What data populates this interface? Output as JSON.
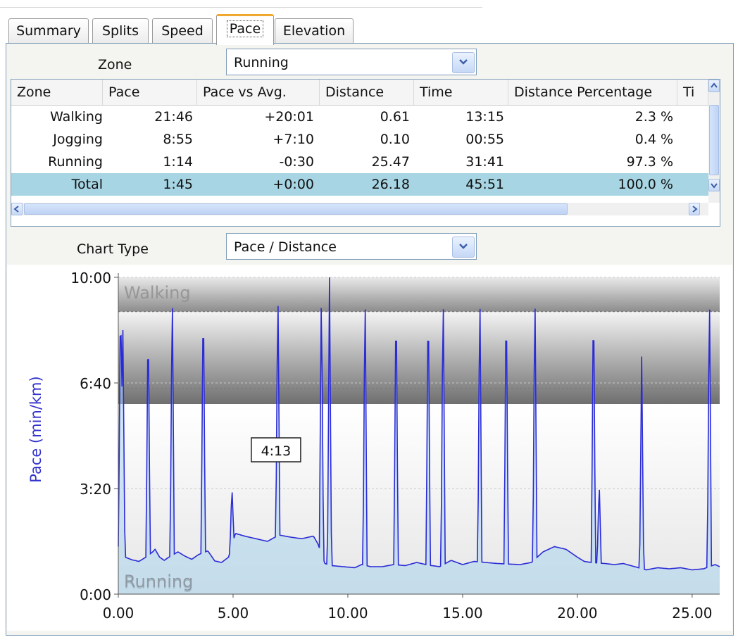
{
  "tabs": [
    {
      "label": "Summary",
      "active": false
    },
    {
      "label": "Splits",
      "active": false
    },
    {
      "label": "Speed",
      "active": false
    },
    {
      "label": "Pace",
      "active": true
    },
    {
      "label": "Elevation",
      "active": false
    }
  ],
  "zone_selector": {
    "label": "Zone",
    "value": "Running"
  },
  "table": {
    "columns": [
      "Zone",
      "Pace",
      "Pace vs Avg.",
      "Distance",
      "Time",
      "Distance Percentage",
      "Ti"
    ],
    "rows": [
      {
        "zone": "Walking",
        "pace": "21:46",
        "pace_vs_avg": "+20:01",
        "distance": "0.61",
        "time": "13:15",
        "distance_pct": "2.3 %"
      },
      {
        "zone": "Jogging",
        "pace": "8:55",
        "pace_vs_avg": "+7:10",
        "distance": "0.10",
        "time": "00:55",
        "distance_pct": "0.4 %"
      },
      {
        "zone": "Running",
        "pace": "1:14",
        "pace_vs_avg": "-0:30",
        "distance": "25.47",
        "time": "31:41",
        "distance_pct": "97.3 %"
      },
      {
        "zone": "Total",
        "pace": "1:45",
        "pace_vs_avg": "+0:00",
        "distance": "26.18",
        "time": "45:51",
        "distance_pct": "100.0 %"
      }
    ]
  },
  "chart_type_selector": {
    "label": "Chart Type",
    "value": "Pace / Distance"
  },
  "chart_data": {
    "type": "line",
    "ylabel": "Pace (min/km)",
    "xlabel": "",
    "xlim": [
      0,
      26.2
    ],
    "ylim_seconds": [
      0,
      600
    ],
    "y_ticks": [
      {
        "value": 0,
        "label": "0:00"
      },
      {
        "value": 200,
        "label": "3:20"
      },
      {
        "value": 400,
        "label": "6:40"
      },
      {
        "value": 600,
        "label": "10:00"
      }
    ],
    "x_ticks": [
      {
        "value": 0,
        "label": "0.00"
      },
      {
        "value": 5,
        "label": "5.00"
      },
      {
        "value": 10,
        "label": "10.00"
      },
      {
        "value": 15,
        "label": "15.00"
      },
      {
        "value": 20,
        "label": "20.00"
      },
      {
        "value": 25,
        "label": "25.00"
      }
    ],
    "zones": [
      {
        "name": "Walking",
        "from": 535,
        "to": 600,
        "color": "#9a9a9a"
      },
      {
        "name": "Jogging",
        "from": 360,
        "to": 535,
        "color": "#8a8a8a"
      },
      {
        "name": "Running",
        "from": 0,
        "to": 360,
        "color": "#b7d7ec"
      }
    ],
    "series_color": "#2b2bd6",
    "base_pace": [
      [
        0,
        90
      ],
      [
        0.1,
        100
      ],
      [
        0.3,
        70
      ],
      [
        0.6,
        65
      ],
      [
        0.9,
        62
      ],
      [
        1.2,
        70
      ],
      [
        1.5,
        80
      ],
      [
        1.6,
        85
      ],
      [
        1.8,
        70
      ],
      [
        2.0,
        64
      ],
      [
        2.2,
        70
      ],
      [
        2.6,
        80
      ],
      [
        2.9,
        72
      ],
      [
        3.2,
        66
      ],
      [
        3.5,
        75
      ],
      [
        3.9,
        82
      ],
      [
        4.2,
        63
      ],
      [
        4.5,
        60
      ],
      [
        4.8,
        70
      ],
      [
        5.1,
        115
      ],
      [
        5.5,
        110
      ],
      [
        6.0,
        105
      ],
      [
        6.5,
        100
      ],
      [
        7.0,
        112
      ],
      [
        7.5,
        108
      ],
      [
        8.0,
        105
      ],
      [
        8.5,
        110
      ],
      [
        8.7,
        95
      ],
      [
        9.0,
        58
      ],
      [
        9.3,
        54
      ],
      [
        9.8,
        52
      ],
      [
        10.3,
        50
      ],
      [
        10.6,
        56
      ],
      [
        11.0,
        52
      ],
      [
        11.5,
        52
      ],
      [
        12.0,
        56
      ],
      [
        12.5,
        54
      ],
      [
        13.0,
        60
      ],
      [
        13.5,
        55
      ],
      [
        14.0,
        52
      ],
      [
        14.5,
        64
      ],
      [
        15.0,
        56
      ],
      [
        15.5,
        62
      ],
      [
        16.0,
        60
      ],
      [
        16.5,
        58
      ],
      [
        17.0,
        57
      ],
      [
        17.5,
        56
      ],
      [
        18.0,
        60
      ],
      [
        18.5,
        80
      ],
      [
        19.0,
        90
      ],
      [
        19.5,
        85
      ],
      [
        20.0,
        70
      ],
      [
        20.3,
        62
      ],
      [
        20.6,
        60
      ],
      [
        21.2,
        58
      ],
      [
        21.6,
        56
      ],
      [
        22.0,
        58
      ],
      [
        22.5,
        52
      ],
      [
        23.0,
        46
      ],
      [
        23.5,
        50
      ],
      [
        24.0,
        48
      ],
      [
        24.5,
        50
      ],
      [
        25.0,
        46
      ],
      [
        25.5,
        48
      ],
      [
        26.0,
        56
      ],
      [
        26.2,
        52
      ]
    ],
    "spikes": [
      {
        "x": 0.1,
        "peak": 600
      },
      {
        "x": 0.2,
        "peak": 500
      },
      {
        "x": 1.3,
        "peak": 550
      },
      {
        "x": 2.35,
        "peak": 600
      },
      {
        "x": 3.7,
        "peak": 600
      },
      {
        "x": 4.95,
        "peak": 205
      },
      {
        "x": 6.95,
        "peak": 600
      },
      {
        "x": 8.85,
        "peak": 600
      },
      {
        "x": 9.2,
        "peak": 600
      },
      {
        "x": 10.75,
        "peak": 600
      },
      {
        "x": 12.1,
        "peak": 600
      },
      {
        "x": 13.5,
        "peak": 600
      },
      {
        "x": 14.15,
        "peak": 600
      },
      {
        "x": 15.75,
        "peak": 600
      },
      {
        "x": 16.9,
        "peak": 600
      },
      {
        "x": 18.15,
        "peak": 600
      },
      {
        "x": 20.7,
        "peak": 600
      },
      {
        "x": 20.95,
        "peak": 215
      },
      {
        "x": 22.8,
        "peak": 450
      },
      {
        "x": 25.75,
        "peak": 600
      }
    ],
    "annotations": [
      {
        "text": "4:13",
        "x": 6.9,
        "y": 272
      }
    ]
  }
}
